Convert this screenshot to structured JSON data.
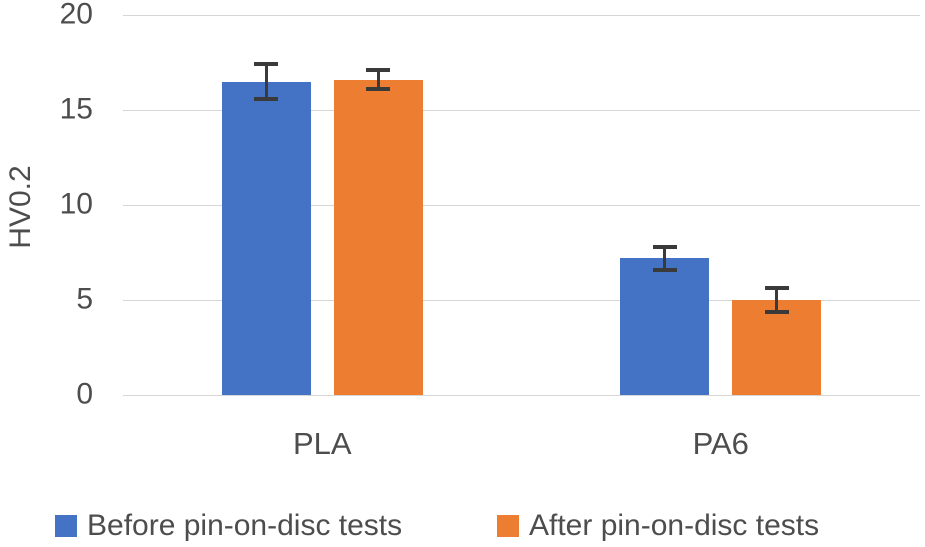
{
  "chart_data": {
    "type": "bar",
    "title": "",
    "ylabel": "HV0.2",
    "xlabel": "",
    "categories": [
      "PLA",
      "PA6"
    ],
    "series": [
      {
        "name": "Before pin-on-disc tests",
        "color": "#4472C4",
        "values": [
          16.5,
          7.2
        ],
        "errors": [
          0.9,
          0.6
        ]
      },
      {
        "name": "After pin-on-disc tests",
        "color": "#ED7D31",
        "values": [
          16.6,
          5.0
        ],
        "errors": [
          0.5,
          0.65
        ]
      }
    ],
    "ylim": [
      0,
      20
    ],
    "yticks": [
      0,
      5,
      10,
      15,
      20
    ],
    "grid": true,
    "legend_position": "bottom",
    "colors": {
      "error_bar": "#3a3a3a",
      "gridline": "#d6d6d6",
      "text": "#4d4d4d",
      "background": "#ffffff"
    }
  }
}
